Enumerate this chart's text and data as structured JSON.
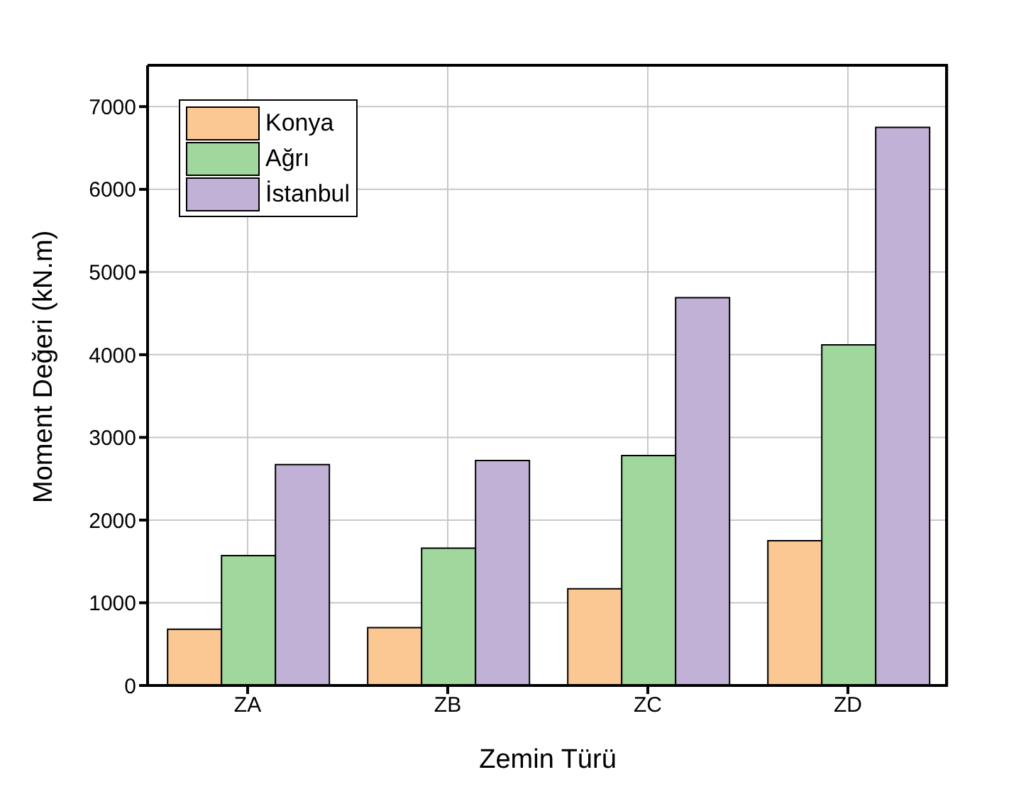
{
  "chart_data": {
    "type": "bar",
    "xlabel": "Zemin Türü",
    "ylabel": "Moment Değeri (kN.m)",
    "categories": [
      "ZA",
      "ZB",
      "ZC",
      "ZD"
    ],
    "series": [
      {
        "name": "Konya",
        "color": "#fbc793",
        "values": [
          680,
          700,
          1170,
          1750
        ]
      },
      {
        "name": "Ağrı",
        "color": "#9fd79c",
        "values": [
          1570,
          1660,
          2780,
          4120
        ]
      },
      {
        "name": "İstanbul",
        "color": "#c2b1d6",
        "values": [
          2670,
          2720,
          4690,
          6750
        ]
      }
    ],
    "ylim": [
      0,
      7500
    ],
    "yticks": [
      0,
      1000,
      2000,
      3000,
      4000,
      5000,
      6000,
      7000
    ],
    "grid": true,
    "legend": "top left"
  }
}
